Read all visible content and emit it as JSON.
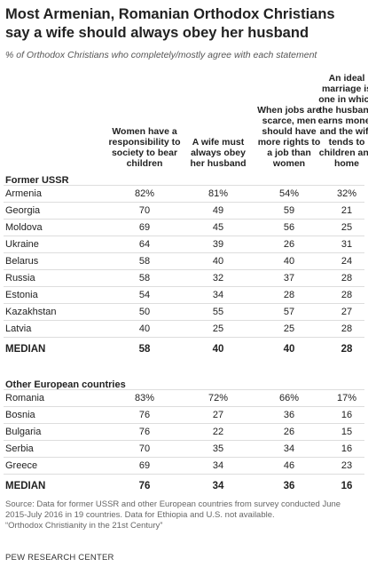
{
  "header": {
    "title": "Most Armenian, Romanian Orthodox Christians say a wife should always obey her husband",
    "subtitle": "% of Orthodox Christians who completely/mostly agree with each statement"
  },
  "table": {
    "columns": [
      "Women have a responsibility to society to bear children",
      "A wife must always obey her husband",
      "When jobs are scarce, men should have more rights to a job than women",
      "An ideal marriage is one in which the husband earns money and the wife tends to children and home"
    ],
    "sections": [
      {
        "label": "Former USSR",
        "rows": [
          [
            "Armenia",
            "82%",
            "81%",
            "54%",
            "32%"
          ],
          [
            "Georgia",
            "70",
            "49",
            "59",
            "21"
          ],
          [
            "Moldova",
            "69",
            "45",
            "56",
            "25"
          ],
          [
            "Ukraine",
            "64",
            "39",
            "26",
            "31"
          ],
          [
            "Belarus",
            "58",
            "40",
            "40",
            "24"
          ],
          [
            "Russia",
            "58",
            "32",
            "37",
            "28"
          ],
          [
            "Estonia",
            "54",
            "34",
            "28",
            "28"
          ],
          [
            "Kazakhstan",
            "50",
            "55",
            "57",
            "27"
          ],
          [
            "Latvia",
            "40",
            "25",
            "25",
            "28"
          ]
        ],
        "median": [
          "MEDIAN",
          "58",
          "40",
          "40",
          "28"
        ]
      },
      {
        "label": "Other European countries",
        "rows": [
          [
            "Romania",
            "83%",
            "72%",
            "66%",
            "17%"
          ],
          [
            "Bosnia",
            "76",
            "27",
            "36",
            "16"
          ],
          [
            "Bulgaria",
            "76",
            "22",
            "26",
            "15"
          ],
          [
            "Serbia",
            "70",
            "35",
            "34",
            "16"
          ],
          [
            "Greece",
            "69",
            "34",
            "46",
            "23"
          ]
        ],
        "median": [
          "MEDIAN",
          "76",
          "34",
          "36",
          "16"
        ]
      }
    ]
  },
  "footer": {
    "source": "Source: Data for former USSR and other European countries from survey conducted June 2015-July 2016 in 19 countries. Data for Ethiopia and U.S. not available.",
    "report": "“Orthodox Christianity in the 21st Century”",
    "org": "PEW RESEARCH CENTER"
  }
}
